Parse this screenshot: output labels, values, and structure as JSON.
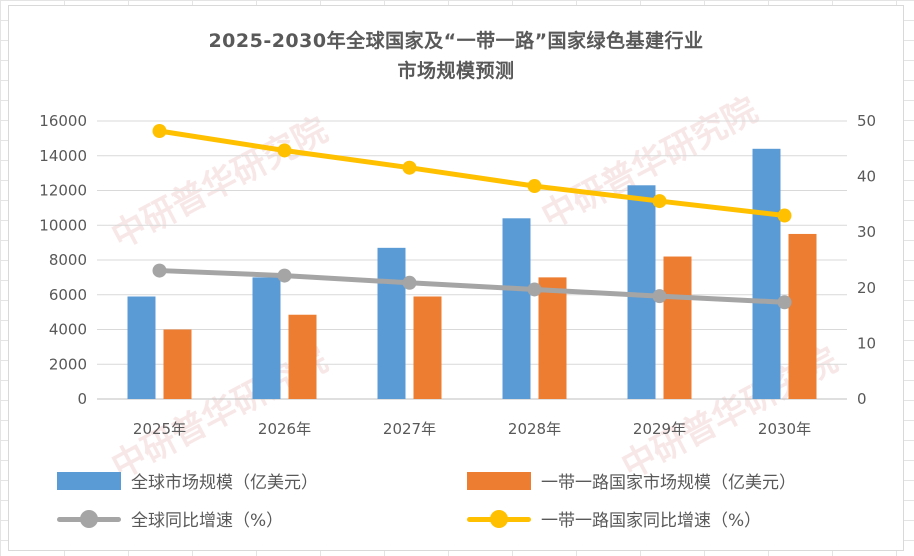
{
  "chart_data": {
    "type": "bar",
    "title": "2025-2030年全球国家及“一带一路”国家绿色基建行业",
    "title_line2": "市场规模预测",
    "categories": [
      "2025年",
      "2026年",
      "2027年",
      "2028年",
      "2029年",
      "2030年"
    ],
    "series": [
      {
        "name": "全球市场规模（亿美元）",
        "type": "bar",
        "axis": "left",
        "color": "#5B9BD5",
        "values": [
          5900,
          7000,
          8700,
          10400,
          12300,
          14400
        ]
      },
      {
        "name": "一带一路国家市场规模（亿美元）",
        "type": "bar",
        "axis": "left",
        "color": "#ED7D31",
        "values": [
          4000,
          4850,
          5900,
          7000,
          8200,
          9500
        ]
      },
      {
        "name": "全球同比增速（%）",
        "type": "line",
        "axis": "right",
        "color": "#A5A5A5",
        "values": [
          23.1,
          22.2,
          20.9,
          19.7,
          18.5,
          17.4
        ]
      },
      {
        "name": "一带一路国家同比增速（%）",
        "type": "line",
        "axis": "right",
        "color": "#FFC000",
        "values": [
          48.2,
          44.7,
          41.6,
          38.3,
          35.6,
          33.0
        ]
      }
    ],
    "ylim_left": [
      0,
      16000
    ],
    "yticks_left": [
      "0",
      "2000",
      "4000",
      "6000",
      "8000",
      "10000",
      "12000",
      "14000",
      "16000"
    ],
    "ylim_right": [
      0,
      50
    ],
    "yticks_right": [
      "0",
      "10",
      "20",
      "30",
      "40",
      "50"
    ],
    "grid": true,
    "legend_position": "bottom"
  },
  "watermark_text": "中研普华研究院"
}
